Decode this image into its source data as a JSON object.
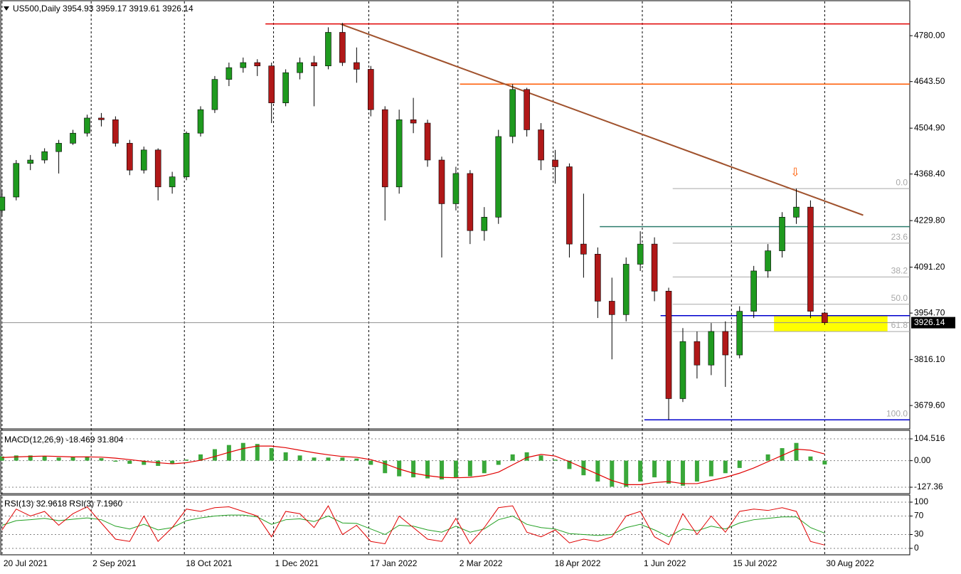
{
  "chart_data": {
    "type": "candlestick",
    "title": "US500,Daily",
    "xlim": [
      "2021-07-19",
      "2022-10-11"
    ],
    "xticks": [
      {
        "value": "2021-07-20",
        "label": "20 Jul 2021"
      },
      {
        "value": "2021-09-02",
        "label": "2 Sep 2021"
      },
      {
        "value": "2021-10-18",
        "label": "18 Oct 2021"
      },
      {
        "value": "2021-12-01",
        "label": "1 Dec 2021"
      },
      {
        "value": "2022-01-17",
        "label": "17 Jan 2022"
      },
      {
        "value": "2022-03-02",
        "label": "2 Mar 2022"
      },
      {
        "value": "2022-04-18",
        "label": "18 Apr 2022"
      },
      {
        "value": "2022-06-01",
        "label": "1 Jun 2022"
      },
      {
        "value": "2022-07-15",
        "label": "15 Jul 2022"
      },
      {
        "value": "2022-08-30",
        "label": "30 Aug 2022"
      }
    ],
    "ylim": [
      3610,
      4882
    ],
    "yticks": [
      {
        "value": 4780,
        "label": "4780.00"
      },
      {
        "value": 4643.5,
        "label": "4643.50"
      },
      {
        "value": 4504.9,
        "label": "4504.90"
      },
      {
        "value": 4368.4,
        "label": "4368.40"
      },
      {
        "value": 4229.8,
        "label": "4229.80"
      },
      {
        "value": 4091.2,
        "label": "4091.20"
      },
      {
        "value": 3954.7,
        "label": "3954.70"
      },
      {
        "value": 3816.1,
        "label": "3816.10"
      },
      {
        "value": 3679.6,
        "label": "3679.60"
      }
    ],
    "colors": {
      "up": "#1f9a1f",
      "down": "#b01818",
      "wick": "#000000"
    },
    "x": [
      "2021-07-20",
      "2021-07-27",
      "2021-08-03",
      "2021-08-10",
      "2021-08-17",
      "2021-08-24",
      "2021-08-31",
      "2021-09-07",
      "2021-09-14",
      "2021-09-21",
      "2021-09-28",
      "2021-10-05",
      "2021-10-12",
      "2021-10-19",
      "2021-10-26",
      "2021-11-02",
      "2021-11-09",
      "2021-11-16",
      "2021-11-23",
      "2021-11-30",
      "2021-12-07",
      "2021-12-14",
      "2021-12-21",
      "2021-12-28",
      "2022-01-04",
      "2022-01-11",
      "2022-01-18",
      "2022-01-25",
      "2022-02-01",
      "2022-02-08",
      "2022-02-15",
      "2022-02-22",
      "2022-03-01",
      "2022-03-08",
      "2022-03-15",
      "2022-03-22",
      "2022-03-29",
      "2022-04-05",
      "2022-04-12",
      "2022-04-19",
      "2022-04-26",
      "2022-05-03",
      "2022-05-10",
      "2022-05-17",
      "2022-05-24",
      "2022-05-31",
      "2022-06-07",
      "2022-06-14",
      "2022-06-21",
      "2022-06-28",
      "2022-07-05",
      "2022-07-12",
      "2022-07-19",
      "2022-07-26",
      "2022-08-02",
      "2022-08-09",
      "2022-08-16",
      "2022-08-23",
      "2022-08-30"
    ],
    "open": [
      4260,
      4300,
      4400,
      4410,
      4435,
      4460,
      4490,
      4535,
      4530,
      4460,
      4380,
      4440,
      4330,
      4360,
      4490,
      4560,
      4650,
      4685,
      4700,
      4690,
      4580,
      4670,
      4700,
      4690,
      4790,
      4700,
      4680,
      4560,
      4330,
      4530,
      4520,
      4410,
      4280,
      4370,
      4200,
      4240,
      4480,
      4620,
      4500,
      4410,
      4390,
      4160,
      4130,
      3990,
      3950,
      4100,
      4160,
      4020,
      3700,
      3870,
      3800,
      3900,
      3830,
      3960,
      4080,
      4140,
      4240,
      4270,
      3954.93
    ],
    "high": [
      4320,
      4410,
      4425,
      4445,
      4470,
      4500,
      4545,
      4550,
      4540,
      4470,
      4450,
      4445,
      4375,
      4495,
      4570,
      4660,
      4700,
      4715,
      4710,
      4700,
      4680,
      4715,
      4720,
      4805,
      4818,
      4745,
      4690,
      4570,
      4560,
      4595,
      4530,
      4420,
      4390,
      4380,
      4270,
      4500,
      4636,
      4625,
      4520,
      4440,
      4400,
      4310,
      4150,
      4060,
      4120,
      4198,
      4180,
      4030,
      3910,
      3900,
      3925,
      3930,
      3975,
      4095,
      4160,
      4255,
      4325,
      4290,
      3959.17
    ],
    "low": [
      4245,
      4290,
      4380,
      4400,
      4370,
      4455,
      4480,
      4510,
      4450,
      4365,
      4370,
      4290,
      4310,
      4350,
      4480,
      4550,
      4630,
      4670,
      4660,
      4520,
      4570,
      4650,
      4570,
      4680,
      4690,
      4640,
      4540,
      4230,
      4310,
      4490,
      4390,
      4120,
      4260,
      4160,
      4170,
      4220,
      4460,
      4480,
      4380,
      4340,
      4120,
      4060,
      3940,
      3817,
      3930,
      4080,
      3990,
      3637,
      3690,
      3760,
      3770,
      3735,
      3820,
      3940,
      4060,
      4120,
      4220,
      3940,
      3919.61
    ],
    "close": [
      4300,
      4400,
      4410,
      4435,
      4460,
      4490,
      4535,
      4530,
      4460,
      4380,
      4440,
      4330,
      4360,
      4490,
      4560,
      4650,
      4685,
      4700,
      4690,
      4580,
      4670,
      4700,
      4690,
      4790,
      4700,
      4680,
      4560,
      4330,
      4530,
      4520,
      4410,
      4280,
      4370,
      4200,
      4240,
      4480,
      4620,
      4500,
      4410,
      4390,
      4160,
      4130,
      3990,
      3950,
      4100,
      4160,
      4020,
      3700,
      3870,
      3800,
      3900,
      3830,
      3960,
      4080,
      4140,
      4240,
      4270,
      3960,
      3926.14
    ],
    "levels": [
      {
        "value": 4815,
        "from": "2021-11-27",
        "color": "#e00000"
      },
      {
        "value": 4636,
        "from": "2022-03-03",
        "color": "#ff5a00"
      },
      {
        "value": 4212,
        "from": "2022-05-11",
        "color": "#2e7d6e"
      },
      {
        "value": 3947,
        "from": "2022-06-10",
        "color": "#0000cd"
      },
      {
        "value": 3637,
        "from": "2022-06-02",
        "color": "#0000cd"
      }
    ],
    "trendline": {
      "x": [
        "2022-01-03",
        "2022-09-18"
      ],
      "y": [
        4815,
        4246
      ],
      "color": "#a0522d"
    },
    "zone": {
      "x": [
        "2022-08-05",
        "2022-09-30"
      ],
      "y": [
        3900,
        3947
      ],
      "color": "#ffff00"
    },
    "fibonacci": {
      "x": "2022-06-16",
      "high": 4325,
      "low": 3637,
      "color": "#a8a8a8",
      "levels": [
        {
          "value": 0,
          "label": "0.0"
        },
        23.6,
        38.2,
        {
          "value": 50,
          "label": "50.0"
        },
        61.8,
        {
          "value": 100,
          "label": "100.0"
        }
      ]
    },
    "panels": [
      {
        "type": "macd",
        "title": "MACD(12,26,9)",
        "ylim": [
          -154.6,
          142
        ],
        "yticks": [
          104.516,
          {
            "value": 0,
            "label": "0.00"
          },
          -127.36
        ],
        "histogram_color": "#3aa83a",
        "signal_color": "#e00000",
        "histogram": [
          20,
          25,
          25,
          22,
          15,
          18,
          20,
          12,
          -5,
          -15,
          -20,
          -25,
          -15,
          5,
          30,
          55,
          75,
          85,
          80,
          60,
          40,
          25,
          15,
          15,
          15,
          10,
          -20,
          -60,
          -75,
          -80,
          -85,
          -90,
          -80,
          -75,
          -60,
          -20,
          30,
          40,
          25,
          5,
          -40,
          -70,
          -100,
          -125,
          -125,
          -100,
          -80,
          -110,
          -120,
          -100,
          -75,
          -60,
          -35,
          0,
          30,
          60,
          85,
          20,
          -18.469
        ],
        "signal": [
          15,
          18,
          20,
          22,
          20,
          18,
          18,
          17,
          12,
          5,
          -3,
          -10,
          -15,
          -10,
          2,
          20,
          40,
          58,
          70,
          70,
          62,
          50,
          38,
          28,
          20,
          16,
          5,
          -15,
          -40,
          -60,
          -72,
          -80,
          -82,
          -80,
          -72,
          -55,
          -20,
          15,
          30,
          22,
          -5,
          -35,
          -65,
          -95,
          -115,
          -115,
          -105,
          -100,
          -110,
          -110,
          -95,
          -80,
          -60,
          -35,
          -5,
          25,
          55,
          50,
          31.804
        ]
      },
      {
        "type": "line",
        "ylim": [
          -12.3,
          113.8
        ],
        "yticks": [
          100,
          70,
          30,
          0
        ],
        "series": [
          {
            "name": "RSI(13)",
            "color": "#22a022",
            "values": [
              50,
              60,
              62,
              65,
              60,
              63,
              66,
              62,
              48,
              42,
              52,
              40,
              45,
              60,
              66,
              70,
              72,
              72,
              68,
              52,
              62,
              64,
              58,
              70,
              55,
              54,
              42,
              30,
              50,
              48,
              40,
              35,
              48,
              35,
              42,
              62,
              70,
              52,
              45,
              42,
              32,
              30,
              28,
              30,
              45,
              52,
              40,
              25,
              42,
              38,
              48,
              42,
              55,
              62,
              65,
              68,
              68,
              45,
              32.9618
            ]
          },
          {
            "name": "RSI(3)",
            "color": "#e00000",
            "values": [
              40,
              85,
              70,
              80,
              50,
              75,
              90,
              55,
              20,
              15,
              70,
              15,
              45,
              85,
              80,
              88,
              90,
              80,
              70,
              25,
              80,
              75,
              45,
              92,
              30,
              50,
              15,
              10,
              70,
              45,
              20,
              15,
              65,
              10,
              45,
              88,
              92,
              35,
              25,
              40,
              12,
              20,
              15,
              25,
              70,
              80,
              25,
              8,
              75,
              30,
              70,
              35,
              80,
              85,
              82,
              88,
              80,
              15,
              7.196
            ],
            "value_labels": [
              null,
              null,
              null,
              null,
              null,
              null,
              null,
              null,
              null,
              null,
              null,
              null,
              null,
              null,
              null,
              null,
              null,
              null,
              null,
              null,
              null,
              null,
              null,
              null,
              null,
              null,
              null,
              null,
              null,
              null,
              null,
              null,
              null,
              null,
              null,
              null,
              null,
              null,
              null,
              null,
              null,
              null,
              null,
              null,
              null,
              null,
              null,
              null,
              null,
              null,
              null,
              null,
              null,
              null,
              null,
              null,
              null,
              null,
              "7.1960"
            ]
          }
        ]
      }
    ]
  }
}
